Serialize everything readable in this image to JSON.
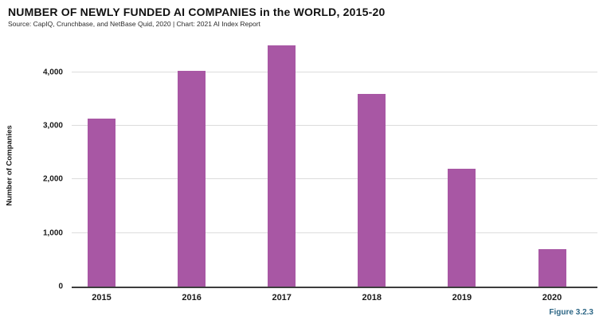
{
  "header": {
    "title": "NUMBER OF NEWLY FUNDED AI COMPANIES in the WORLD, 2015-20",
    "source": "Source: CapIQ, Crunchbase, and NetBase Quid, 2020 | Chart: 2021 AI Index Report"
  },
  "figure_label": "Figure 3.2.3",
  "colors": {
    "bar": "#a857a4",
    "gridline": "#dcdcdc",
    "axis": "#3d3d3d",
    "figure_label": "#2e6786",
    "text": "#1a1a1a"
  },
  "chart_data": {
    "type": "bar",
    "title": "NUMBER OF NEWLY FUNDED AI COMPANIES in the WORLD, 2015-20",
    "subtitle": "Source: CapIQ, Crunchbase, and NetBase Quid, 2020 | Chart: 2021 AI Index Report",
    "categories": [
      "2015",
      "2016",
      "2017",
      "2018",
      "2019",
      "2020"
    ],
    "values": [
      3130,
      4030,
      4500,
      3600,
      2200,
      700
    ],
    "xlabel": "",
    "ylabel": "Number of Companies",
    "ylim": [
      0,
      4560
    ],
    "yticks": [
      {
        "label": "0",
        "value": 0
      },
      {
        "label": "1,000",
        "value": 1000
      },
      {
        "label": "2,000",
        "value": 2000
      },
      {
        "label": "3,000",
        "value": 3000
      },
      {
        "label": "4,000",
        "value": 4000
      }
    ],
    "grid": true,
    "legend": "none",
    "bar_color": "#a857a4"
  }
}
